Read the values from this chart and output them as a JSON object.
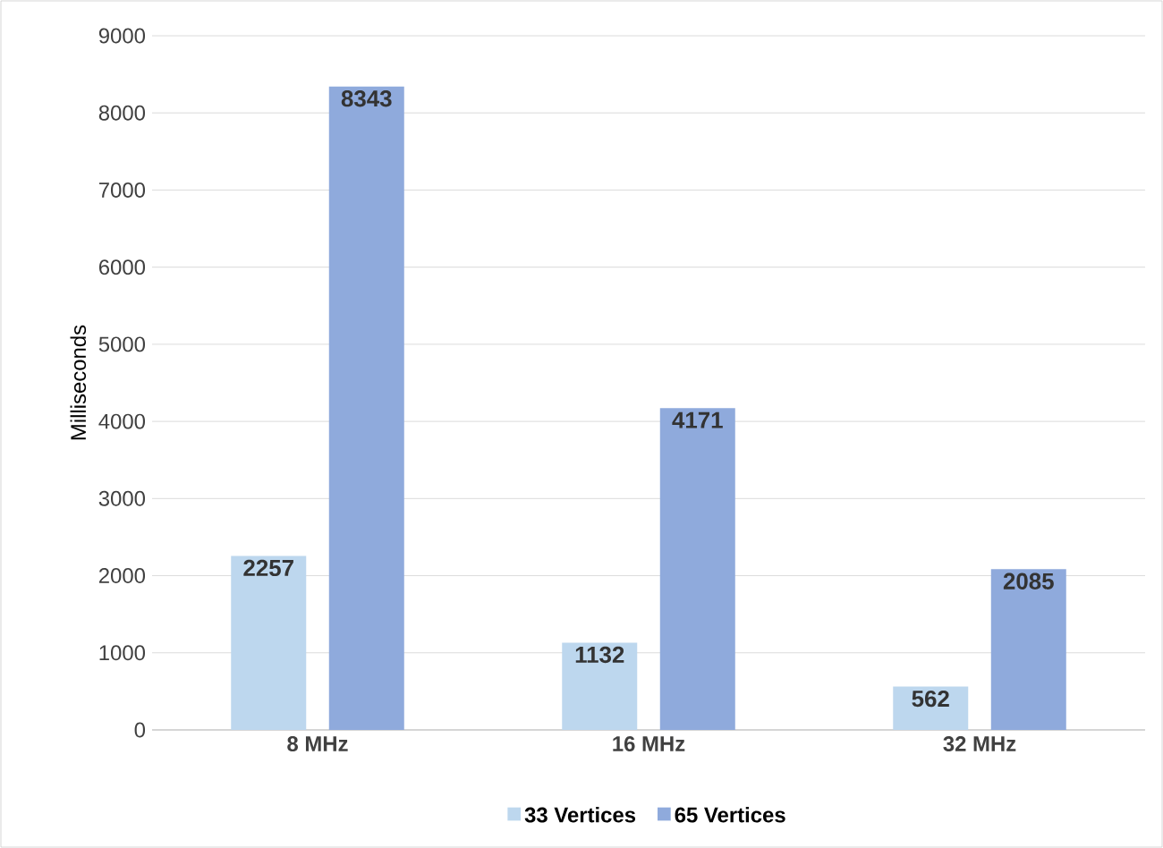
{
  "chart_data": {
    "type": "bar",
    "ylabel": "Milliseconds",
    "categories": [
      "8 MHz",
      "16 MHz",
      "32 MHz"
    ],
    "series": [
      {
        "name": "33 Vertices",
        "color": "#bdd7ee",
        "values": [
          2257,
          1132,
          562
        ]
      },
      {
        "name": "65 Vertices",
        "color": "#8faadc",
        "values": [
          8343,
          4171,
          2085
        ]
      }
    ],
    "ylim": [
      0,
      9000
    ],
    "yticks": [
      0,
      1000,
      2000,
      3000,
      4000,
      5000,
      6000,
      7000,
      8000,
      9000
    ],
    "grid": "y",
    "legend": "bottom",
    "data_labels": true
  }
}
